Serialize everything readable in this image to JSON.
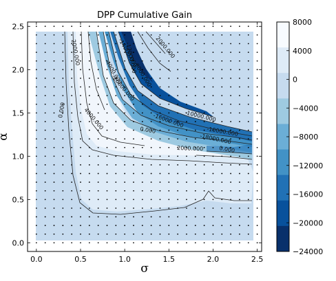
{
  "chart_data": {
    "type": "heatmap",
    "title": "DPP Cumulative Gain",
    "xlabel": "σ",
    "ylabel": "α",
    "xlim": [
      -0.1,
      2.55
    ],
    "ylim": [
      -0.1,
      2.55
    ],
    "x_ticks": [
      "0.0",
      "0.5",
      "1.0",
      "1.5",
      "2.0",
      "2.5"
    ],
    "y_ticks": [
      "0.0",
      "0.5",
      "1.0",
      "1.5",
      "2.0",
      "2.5"
    ],
    "x_tick_values": [
      0.0,
      0.5,
      1.0,
      1.5,
      2.0,
      2.5
    ],
    "y_tick_values": [
      0.0,
      0.5,
      1.0,
      1.5,
      2.0,
      2.5
    ],
    "data_extent": {
      "x": [
        0.0,
        2.5
      ],
      "y": [
        0.0,
        2.5
      ]
    },
    "sample_grid_step": 0.1,
    "colorbar": {
      "ticks": [
        "8000",
        "4000",
        "0",
        "−4000",
        "−8000",
        "−12000",
        "−16000",
        "−20000",
        "−24000"
      ],
      "tick_values": [
        8000,
        4000,
        0,
        -4000,
        -8000,
        -12000,
        -16000,
        -20000,
        -24000
      ],
      "range": [
        -24000,
        8000
      ],
      "colors_high_to_low": [
        "#f7fbff",
        "#deebf7",
        "#c6dbef",
        "#9ecae1",
        "#6baed6",
        "#4292c6",
        "#2171b5",
        "#08519c",
        "#08306b"
      ]
    },
    "contour_labels": [
      "2000.000",
      "0.000",
      "4000.000",
      "2000.000",
      "-10000.000",
      "-12000.000",
      "-20000.000",
      "-8000.000",
      "-16000.000",
      "-18000.000",
      "0.000",
      "2000.000",
      "-14000.000",
      "-10000.000",
      "-4000.000",
      "0.000"
    ]
  }
}
